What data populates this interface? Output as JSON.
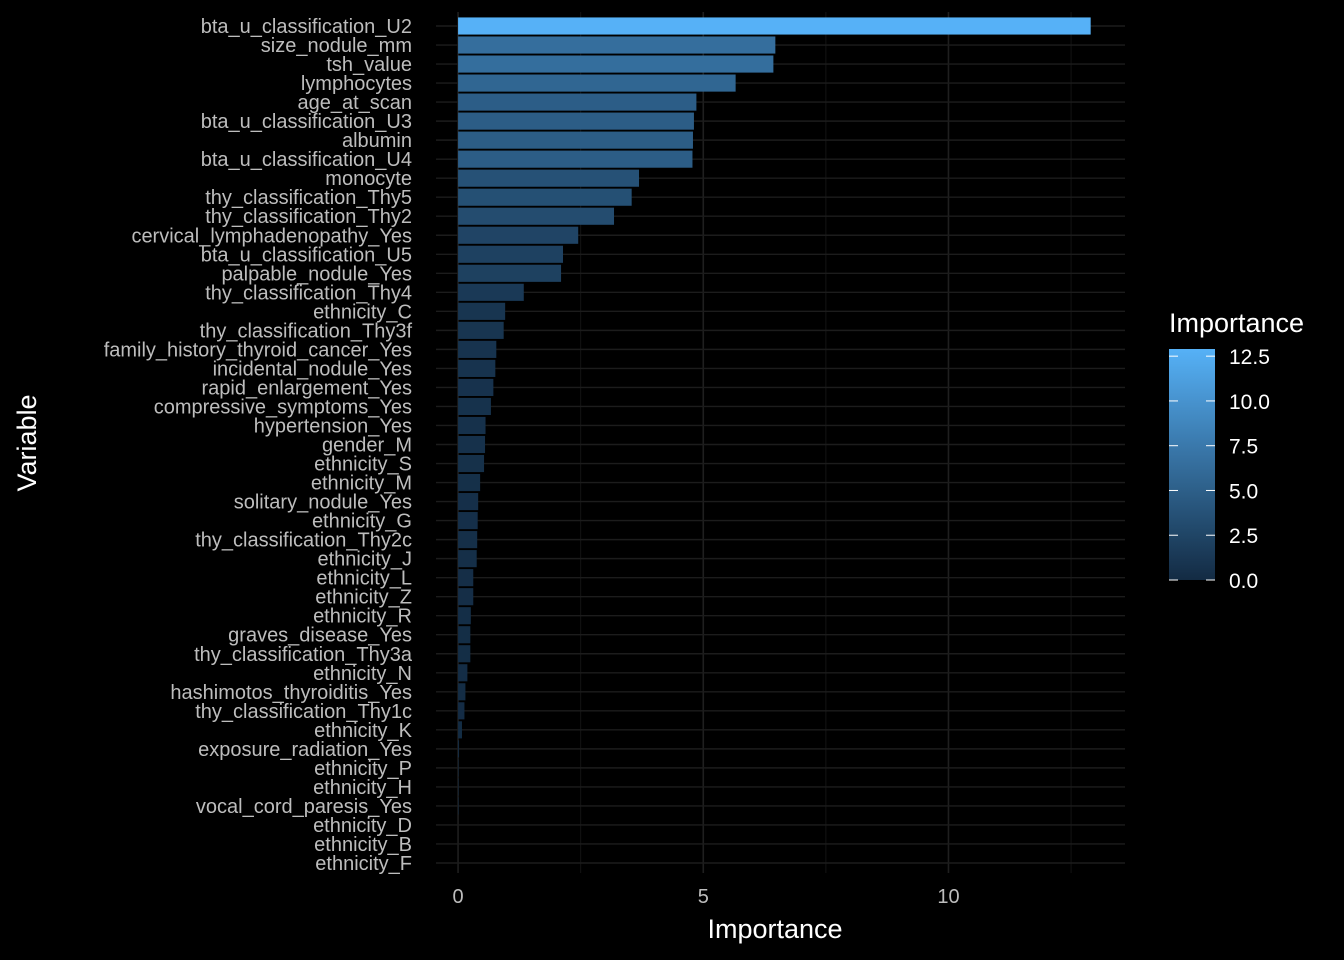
{
  "chart_data": {
    "type": "bar",
    "orientation": "horizontal",
    "xlabel": "Importance",
    "ylabel": "Variable",
    "xlim": [
      -0.45,
      13.6
    ],
    "xticks": [
      0,
      5,
      10
    ],
    "grid": true,
    "legend": {
      "title": "Importance",
      "placement": "right",
      "range": [
        0,
        12.9
      ],
      "ticks": [
        "0.0",
        "2.5",
        "5.0",
        "7.5",
        "10.0",
        "12.5"
      ],
      "tick_values": [
        0,
        2.5,
        5,
        7.5,
        10,
        12.5
      ],
      "low_color": "#132B43",
      "high_color": "#56B1F7"
    },
    "categories": [
      "bta_u_classification_U2",
      "size_nodule_mm",
      "tsh_value",
      "lymphocytes",
      "age_at_scan",
      "bta_u_classification_U3",
      "albumin",
      "bta_u_classification_U4",
      "monocyte",
      "thy_classification_Thy5",
      "thy_classification_Thy2",
      "cervical_lymphadenopathy_Yes",
      "bta_u_classification_U5",
      "palpable_nodule_Yes",
      "thy_classification_Thy4",
      "ethnicity_C",
      "thy_classification_Thy3f",
      "family_history_thyroid_cancer_Yes",
      "incidental_nodule_Yes",
      "rapid_enlargement_Yes",
      "compressive_symptoms_Yes",
      "hypertension_Yes",
      "gender_M",
      "ethnicity_S",
      "ethnicity_M",
      "solitary_nodule_Yes",
      "ethnicity_G",
      "thy_classification_Thy2c",
      "ethnicity_J",
      "ethnicity_L",
      "ethnicity_Z",
      "ethnicity_R",
      "graves_disease_Yes",
      "thy_classification_Thy3a",
      "ethnicity_N",
      "hashimotos_thyroiditis_Yes",
      "thy_classification_Thy1c",
      "ethnicity_K",
      "exposure_radiation_Yes",
      "ethnicity_P",
      "ethnicity_H",
      "vocal_cord_paresis_Yes",
      "ethnicity_D",
      "ethnicity_B",
      "ethnicity_F"
    ],
    "values": [
      12.9,
      6.47,
      6.43,
      5.66,
      4.86,
      4.81,
      4.79,
      4.78,
      3.69,
      3.54,
      3.18,
      2.45,
      2.14,
      2.1,
      1.34,
      0.96,
      0.93,
      0.78,
      0.76,
      0.72,
      0.67,
      0.56,
      0.55,
      0.53,
      0.45,
      0.41,
      0.4,
      0.39,
      0.38,
      0.31,
      0.31,
      0.26,
      0.25,
      0.25,
      0.19,
      0.15,
      0.13,
      0.08,
      0.02,
      0.01,
      0.01,
      0.01,
      0.0,
      0.0,
      0.0
    ]
  }
}
